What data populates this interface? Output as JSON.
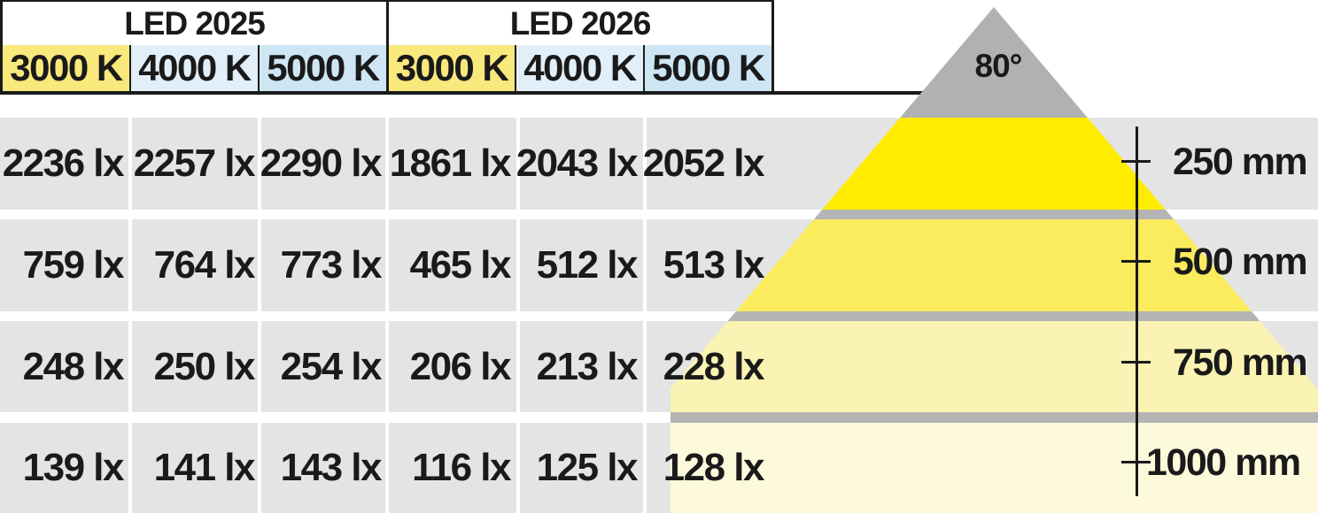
{
  "header": {
    "groups": [
      {
        "label": "LED 2025",
        "columns": [
          {
            "label": "3000 K",
            "bg": "#f9e87c"
          },
          {
            "label": "4000 K",
            "bg": "#e3eff8"
          },
          {
            "label": "5000 K",
            "bg": "#cee6f4"
          }
        ]
      },
      {
        "label": "LED 2026",
        "columns": [
          {
            "label": "3000 K",
            "bg": "#f9e87c"
          },
          {
            "label": "4000 K",
            "bg": "#e3eff8"
          },
          {
            "label": "5000 K",
            "bg": "#cee6f4"
          }
        ]
      }
    ]
  },
  "table": {
    "unit": "lx",
    "rows": [
      {
        "distance_mm": 250,
        "values": [
          "2236 lx",
          "2257 lx",
          "2290 lx",
          "1861 lx",
          "2043 lx",
          "2052 lx"
        ]
      },
      {
        "distance_mm": 500,
        "values": [
          "759 lx",
          "764 lx",
          "773 lx",
          "465 lx",
          "512 lx",
          "513 lx"
        ]
      },
      {
        "distance_mm": 750,
        "values": [
          "248 lx",
          "250 lx",
          "254 lx",
          "206 lx",
          "213 lx",
          "228 lx"
        ]
      },
      {
        "distance_mm": 1000,
        "values": [
          "139 lx",
          "141 lx",
          "143 lx",
          "116 lx",
          "125 lx",
          "128 lx"
        ]
      }
    ]
  },
  "cone": {
    "beam_angle_label": "80°",
    "colors": {
      "apex_gray": "#b1b1b1",
      "band_250mm": "#ffec00",
      "band_500mm": "#fbec5e",
      "band_750mm": "#faf3b3",
      "band_1000mm": "#fdfadc",
      "gap_gray": "#b4b4b4"
    }
  },
  "scale": {
    "labels": [
      "250 mm",
      "500 mm",
      "750 mm",
      "1000 mm"
    ]
  },
  "colors": {
    "background": "#ffffff",
    "row_band_gray": "#e4e4e4",
    "text": "#1a1a1a",
    "border": "#1a1a1a"
  },
  "chart_data": {
    "type": "table",
    "title": "LED illuminance vs distance",
    "column_groups": [
      "LED 2025",
      "LED 2026"
    ],
    "columns": [
      "LED 2025 3000 K",
      "LED 2025 4000 K",
      "LED 2025 5000 K",
      "LED 2026 3000 K",
      "LED 2026 4000 K",
      "LED 2026 5000 K"
    ],
    "row_labels_mm": [
      250,
      500,
      750,
      1000
    ],
    "values_lx": [
      [
        2236,
        2257,
        2290,
        1861,
        2043,
        2052
      ],
      [
        759,
        764,
        773,
        465,
        512,
        513
      ],
      [
        248,
        250,
        254,
        206,
        213,
        228
      ],
      [
        139,
        141,
        143,
        116,
        125,
        128
      ]
    ],
    "beam_angle_deg": 80,
    "unit": "lx"
  }
}
